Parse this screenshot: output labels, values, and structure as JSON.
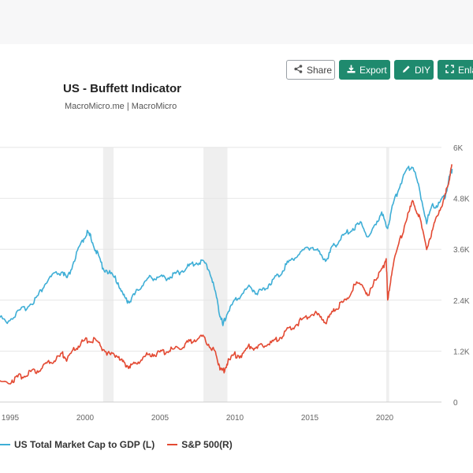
{
  "toolbar": {
    "share_label": "Share",
    "export_label": "Export",
    "diy_label": "DIY",
    "enlarge_label": "Enla"
  },
  "colors": {
    "accent": "#1f8a6e",
    "series_left": "#3eaed6",
    "series_right": "#e34a33",
    "recession": "#efefef"
  },
  "chart_data": {
    "type": "line",
    "title": "US - Buffett Indicator",
    "subtitle": "MacroMicro.me | MacroMicro",
    "x_ticks": [
      "1995",
      "2000",
      "2005",
      "2010",
      "2015",
      "2020"
    ],
    "y_right_ticks": [
      "0",
      "1.2K",
      "2.4K",
      "3.6K",
      "4.8K",
      "6K"
    ],
    "y_right_range": [
      0,
      6000
    ],
    "grid": true,
    "legend_position": "bottom",
    "recession_shading": [
      [
        2001.2,
        2001.9
      ],
      [
        2007.9,
        2009.5
      ],
      [
        2020.1,
        2020.3
      ]
    ],
    "series": [
      {
        "name": "US Total Market Cap to GDP (L)",
        "axis": "left",
        "color": "#3eaed6",
        "points": [
          [
            1993.0,
            65
          ],
          [
            1994.0,
            66
          ],
          [
            1994.8,
            62
          ],
          [
            1995.5,
            69
          ],
          [
            1996.2,
            76
          ],
          [
            1996.8,
            84
          ],
          [
            1997.3,
            96
          ],
          [
            1997.8,
            104
          ],
          [
            1998.5,
            108
          ],
          [
            1998.8,
            100
          ],
          [
            1999.3,
            120
          ],
          [
            1999.8,
            136
          ],
          [
            2000.1,
            145
          ],
          [
            2000.4,
            140
          ],
          [
            2000.8,
            125
          ],
          [
            2001.2,
            112
          ],
          [
            2001.7,
            106
          ],
          [
            2002.2,
            98
          ],
          [
            2002.6,
            84
          ],
          [
            2002.9,
            80
          ],
          [
            2003.3,
            86
          ],
          [
            2003.8,
            96
          ],
          [
            2004.3,
            102
          ],
          [
            2004.8,
            103
          ],
          [
            2005.3,
            102
          ],
          [
            2005.8,
            104
          ],
          [
            2006.3,
            108
          ],
          [
            2006.8,
            112
          ],
          [
            2007.3,
            116
          ],
          [
            2007.8,
            118
          ],
          [
            2008.3,
            110
          ],
          [
            2008.7,
            88
          ],
          [
            2009.0,
            68
          ],
          [
            2009.2,
            57
          ],
          [
            2009.5,
            70
          ],
          [
            2010.0,
            80
          ],
          [
            2010.5,
            88
          ],
          [
            2011.0,
            94
          ],
          [
            2011.5,
            88
          ],
          [
            2012.0,
            92
          ],
          [
            2012.5,
            100
          ],
          [
            2013.0,
            106
          ],
          [
            2013.5,
            116
          ],
          [
            2014.0,
            122
          ],
          [
            2014.6,
            128
          ],
          [
            2015.2,
            132
          ],
          [
            2015.7,
            124
          ],
          [
            2016.1,
            120
          ],
          [
            2016.6,
            132
          ],
          [
            2017.0,
            138
          ],
          [
            2017.5,
            145
          ],
          [
            2018.0,
            150
          ],
          [
            2018.5,
            154
          ],
          [
            2018.9,
            138
          ],
          [
            2019.3,
            152
          ],
          [
            2019.8,
            162
          ],
          [
            2020.2,
            150
          ],
          [
            2020.5,
            168
          ],
          [
            2021.0,
            190
          ],
          [
            2021.5,
            205
          ],
          [
            2021.9,
            208
          ],
          [
            2022.3,
            186
          ],
          [
            2022.8,
            156
          ],
          [
            2023.2,
            170
          ],
          [
            2023.6,
            172
          ],
          [
            2024.0,
            178
          ],
          [
            2024.3,
            195
          ],
          [
            2024.5,
            205
          ]
        ]
      },
      {
        "name": "S&P 500(R)",
        "axis": "right",
        "color": "#e34a33",
        "points": [
          [
            1993.0,
            440
          ],
          [
            1994.0,
            460
          ],
          [
            1995.0,
            500
          ],
          [
            1995.5,
            580
          ],
          [
            1996.0,
            650
          ],
          [
            1996.5,
            700
          ],
          [
            1997.0,
            790
          ],
          [
            1997.5,
            900
          ],
          [
            1998.0,
            1000
          ],
          [
            1998.5,
            1120
          ],
          [
            1998.8,
            1000
          ],
          [
            1999.3,
            1250
          ],
          [
            1999.8,
            1400
          ],
          [
            2000.2,
            1470
          ],
          [
            2000.7,
            1440
          ],
          [
            2001.2,
            1250
          ],
          [
            2001.7,
            1100
          ],
          [
            2002.2,
            1120
          ],
          [
            2002.6,
            900
          ],
          [
            2002.9,
            850
          ],
          [
            2003.3,
            880
          ],
          [
            2003.8,
            1030
          ],
          [
            2004.3,
            1130
          ],
          [
            2004.8,
            1150
          ],
          [
            2005.3,
            1180
          ],
          [
            2005.8,
            1230
          ],
          [
            2006.3,
            1290
          ],
          [
            2006.8,
            1380
          ],
          [
            2007.3,
            1480
          ],
          [
            2007.8,
            1530
          ],
          [
            2008.3,
            1360
          ],
          [
            2008.7,
            1150
          ],
          [
            2009.0,
            820
          ],
          [
            2009.2,
            700
          ],
          [
            2009.5,
            930
          ],
          [
            2010.0,
            1110
          ],
          [
            2010.5,
            1100
          ],
          [
            2011.0,
            1320
          ],
          [
            2011.5,
            1260
          ],
          [
            2012.0,
            1350
          ],
          [
            2012.5,
            1400
          ],
          [
            2013.0,
            1520
          ],
          [
            2013.5,
            1680
          ],
          [
            2014.0,
            1800
          ],
          [
            2014.6,
            1980
          ],
          [
            2015.2,
            2100
          ],
          [
            2015.7,
            2000
          ],
          [
            2016.1,
            1900
          ],
          [
            2016.6,
            2160
          ],
          [
            2017.0,
            2280
          ],
          [
            2017.5,
            2450
          ],
          [
            2018.0,
            2750
          ],
          [
            2018.5,
            2800
          ],
          [
            2018.9,
            2450
          ],
          [
            2019.3,
            2900
          ],
          [
            2019.8,
            3100
          ],
          [
            2020.1,
            3380
          ],
          [
            2020.2,
            2350
          ],
          [
            2020.5,
            3150
          ],
          [
            2021.0,
            3800
          ],
          [
            2021.5,
            4350
          ],
          [
            2021.9,
            4750
          ],
          [
            2022.3,
            4350
          ],
          [
            2022.8,
            3650
          ],
          [
            2023.2,
            4050
          ],
          [
            2023.6,
            4500
          ],
          [
            2024.0,
            4800
          ],
          [
            2024.3,
            5250
          ],
          [
            2024.5,
            5600
          ]
        ]
      }
    ]
  }
}
